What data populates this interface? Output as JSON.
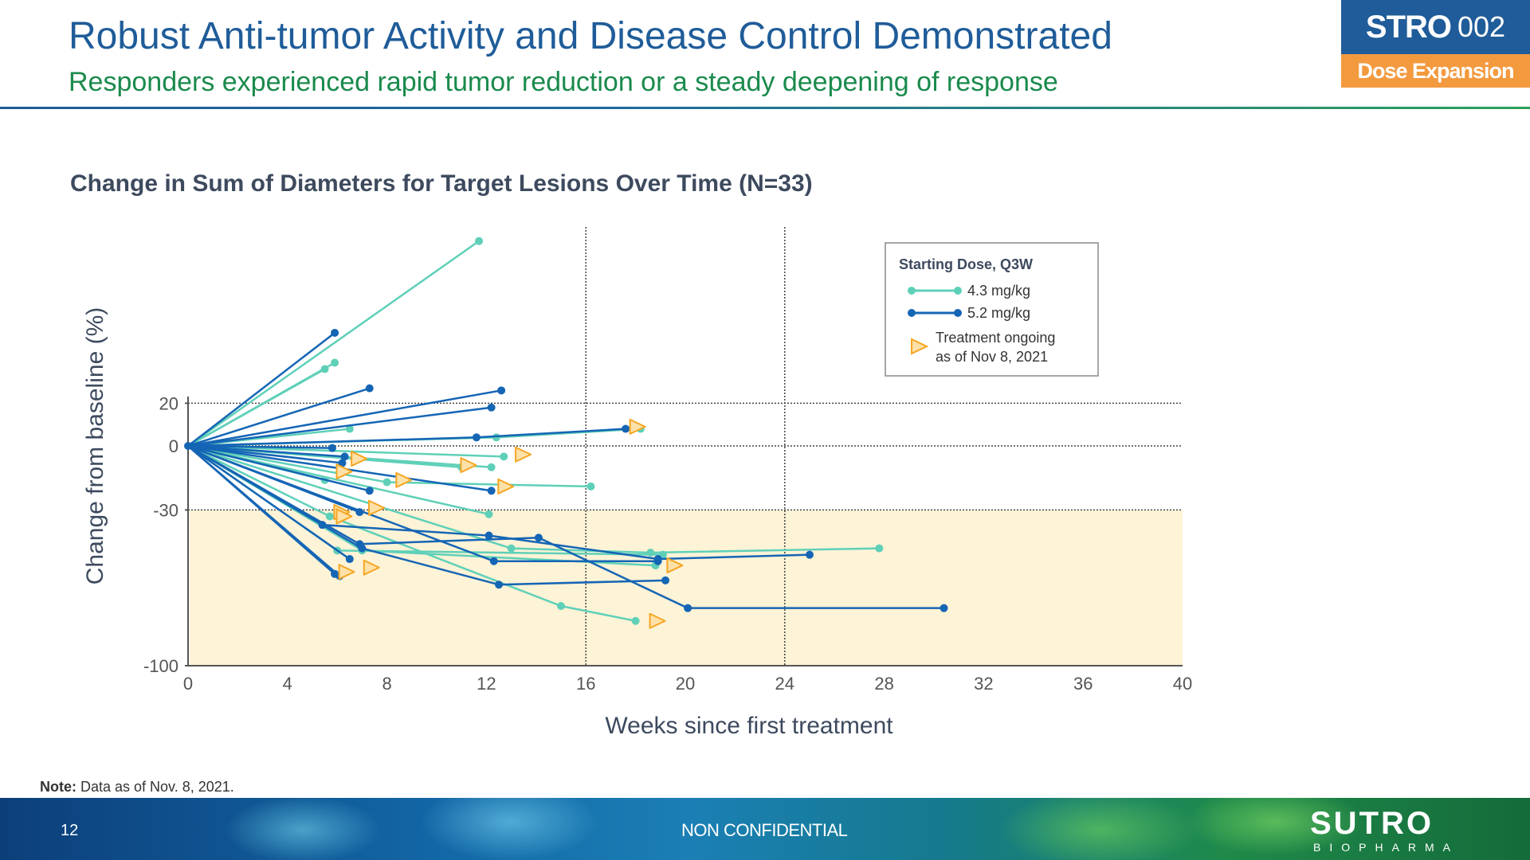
{
  "slide": {
    "title": "Robust Anti-tumor Activity and Disease Control Demonstrated",
    "subtitle": "Responders experienced rapid tumor reduction or a steady deepening of response",
    "badge_strong": "STRO",
    "badge_light": "002",
    "badge_sub": "Dose Expansion",
    "note_label": "Note:",
    "note_text": " Data as of Nov. 8, 2021.",
    "page_number": "12",
    "footer_label": "NON CONFIDENTIAL",
    "logo_main": "SUTRO",
    "logo_sub": "BIOPHARMA"
  },
  "colors": {
    "title": "#1f5c99",
    "subtitle": "#1a8a4c",
    "dose_43": "#5fd0b8",
    "dose_52": "#1565b5",
    "ongoing": "#f5a623",
    "response_band": "#fdf3d7",
    "badge_bottom": "#f39a3f"
  },
  "chart_data": {
    "type": "line",
    "title": "Change in Sum of Diameters for Target Lesions Over Time (N=33)",
    "xlabel": "Weeks since first treatment",
    "ylabel": "Change from baseline (%)",
    "xlim": [
      0,
      40
    ],
    "ylim": [
      -100,
      100
    ],
    "xticks": [
      0,
      4,
      8,
      12,
      16,
      20,
      24,
      28,
      32,
      36,
      40
    ],
    "yticks": [
      20,
      0,
      -30,
      -100
    ],
    "reference_lines_y": [
      20,
      0,
      -30
    ],
    "reference_lines_x": [
      16,
      24
    ],
    "shaded_region_y": [
      -100,
      -30
    ],
    "legend": {
      "title": "Starting Dose, Q3W",
      "position": "top-right",
      "entries": [
        {
          "key": "dose_43",
          "label": "4.3 mg/kg"
        },
        {
          "key": "dose_52",
          "label": "5.2 mg/kg"
        },
        {
          "key": "ongoing",
          "label_line1": "Treatment ongoing",
          "label_line2": "as of Nov 8, 2021"
        }
      ]
    },
    "series": [
      {
        "dose": "4.3 mg/kg",
        "points": [
          [
            0,
            0
          ],
          [
            11.7,
            96
          ]
        ]
      },
      {
        "dose": "4.3 mg/kg",
        "points": [
          [
            0,
            0
          ],
          [
            5.9,
            39
          ]
        ]
      },
      {
        "dose": "4.3 mg/kg",
        "points": [
          [
            0,
            0
          ],
          [
            5.5,
            36
          ]
        ]
      },
      {
        "dose": "4.3 mg/kg",
        "points": [
          [
            0,
            0
          ],
          [
            6.5,
            8
          ]
        ]
      },
      {
        "dose": "4.3 mg/kg",
        "points": [
          [
            0,
            0
          ],
          [
            12.4,
            4
          ],
          [
            18.2,
            8
          ]
        ]
      },
      {
        "dose": "4.3 mg/kg",
        "points": [
          [
            0,
            0
          ],
          [
            12.7,
            -5
          ]
        ]
      },
      {
        "dose": "4.3 mg/kg",
        "points": [
          [
            0,
            0
          ],
          [
            12.2,
            -10
          ]
        ]
      },
      {
        "dose": "4.3 mg/kg",
        "points": [
          [
            0,
            0
          ],
          [
            11,
            -10
          ]
        ]
      },
      {
        "dose": "4.3 mg/kg",
        "points": [
          [
            0,
            0
          ],
          [
            8,
            -17
          ],
          [
            16.2,
            -19
          ]
        ]
      },
      {
        "dose": "4.3 mg/kg",
        "points": [
          [
            0,
            0
          ],
          [
            5.5,
            -16
          ]
        ]
      },
      {
        "dose": "4.3 mg/kg",
        "points": [
          [
            0,
            0
          ],
          [
            12.1,
            -32
          ]
        ]
      },
      {
        "dose": "4.3 mg/kg",
        "points": [
          [
            0,
            0
          ],
          [
            13,
            -48
          ],
          [
            18.6,
            -50
          ],
          [
            27.8,
            -48
          ]
        ]
      },
      {
        "dose": "4.3 mg/kg",
        "points": [
          [
            0,
            0
          ],
          [
            6,
            -49
          ],
          [
            19.1,
            -51
          ]
        ]
      },
      {
        "dose": "4.3 mg/kg",
        "points": [
          [
            0,
            0
          ],
          [
            7,
            -49
          ],
          [
            18.8,
            -56
          ]
        ]
      },
      {
        "dose": "4.3 mg/kg",
        "points": [
          [
            0,
            0
          ],
          [
            5.7,
            -33
          ],
          [
            15,
            -75
          ],
          [
            18,
            -82
          ]
        ]
      },
      {
        "dose": "5.2 mg/kg",
        "points": [
          [
            0,
            0
          ],
          [
            5.9,
            53
          ]
        ]
      },
      {
        "dose": "5.2 mg/kg",
        "points": [
          [
            0,
            0
          ],
          [
            7.3,
            27
          ]
        ]
      },
      {
        "dose": "5.2 mg/kg",
        "points": [
          [
            0,
            0
          ],
          [
            12.6,
            26
          ]
        ]
      },
      {
        "dose": "5.2 mg/kg",
        "points": [
          [
            0,
            0
          ],
          [
            12.2,
            18
          ]
        ]
      },
      {
        "dose": "5.2 mg/kg",
        "points": [
          [
            0,
            0
          ],
          [
            11.6,
            4
          ],
          [
            17.6,
            8
          ]
        ]
      },
      {
        "dose": "5.2 mg/kg",
        "points": [
          [
            0,
            0
          ],
          [
            5.8,
            -1
          ]
        ]
      },
      {
        "dose": "5.2 mg/kg",
        "points": [
          [
            0,
            0
          ],
          [
            6.3,
            -5
          ]
        ]
      },
      {
        "dose": "5.2 mg/kg",
        "points": [
          [
            0,
            0
          ],
          [
            6.2,
            -8
          ]
        ]
      },
      {
        "dose": "5.2 mg/kg",
        "points": [
          [
            0,
            0
          ],
          [
            7.3,
            -21
          ]
        ]
      },
      {
        "dose": "5.2 mg/kg",
        "points": [
          [
            0,
            0
          ],
          [
            12.2,
            -21
          ]
        ]
      },
      {
        "dose": "5.2 mg/kg",
        "points": [
          [
            0,
            0
          ],
          [
            6.9,
            -31
          ]
        ]
      },
      {
        "dose": "5.2 mg/kg",
        "points": [
          [
            0,
            0
          ],
          [
            5.4,
            -37
          ],
          [
            12.1,
            -42
          ],
          [
            18.9,
            -53
          ],
          [
            25,
            -51
          ]
        ]
      },
      {
        "dose": "5.2 mg/kg",
        "points": [
          [
            0,
            0
          ],
          [
            6.9,
            -46
          ],
          [
            14.1,
            -43
          ],
          [
            20.1,
            -76
          ],
          [
            30.4,
            -76
          ]
        ]
      },
      {
        "dose": "5.2 mg/kg",
        "points": [
          [
            0,
            0
          ],
          [
            12.3,
            -54
          ],
          [
            18.9,
            -54
          ]
        ]
      },
      {
        "dose": "5.2 mg/kg",
        "points": [
          [
            0,
            0
          ],
          [
            7,
            -48
          ],
          [
            12.5,
            -65
          ],
          [
            19.2,
            -63
          ]
        ]
      },
      {
        "dose": "5.2 mg/kg",
        "points": [
          [
            0,
            0
          ],
          [
            6.5,
            -53
          ]
        ]
      },
      {
        "dose": "5.2 mg/kg",
        "points": [
          [
            0,
            0
          ],
          [
            5.9,
            -60
          ]
        ]
      },
      {
        "dose": "5.2 mg/kg",
        "points": [
          [
            0,
            0
          ],
          [
            6.1,
            -61
          ]
        ]
      }
    ],
    "ongoing_markers": [
      [
        18,
        9
      ],
      [
        13.4,
        -4
      ],
      [
        6.8,
        -6
      ],
      [
        11.2,
        -9
      ],
      [
        12.7,
        -19
      ],
      [
        8.6,
        -16
      ],
      [
        6.2,
        -12
      ],
      [
        6.1,
        -31
      ],
      [
        7.5,
        -29
      ],
      [
        6.2,
        -33
      ],
      [
        19.5,
        -56
      ],
      [
        7.3,
        -57
      ],
      [
        6.3,
        -59
      ],
      [
        18.8,
        -82
      ]
    ]
  }
}
